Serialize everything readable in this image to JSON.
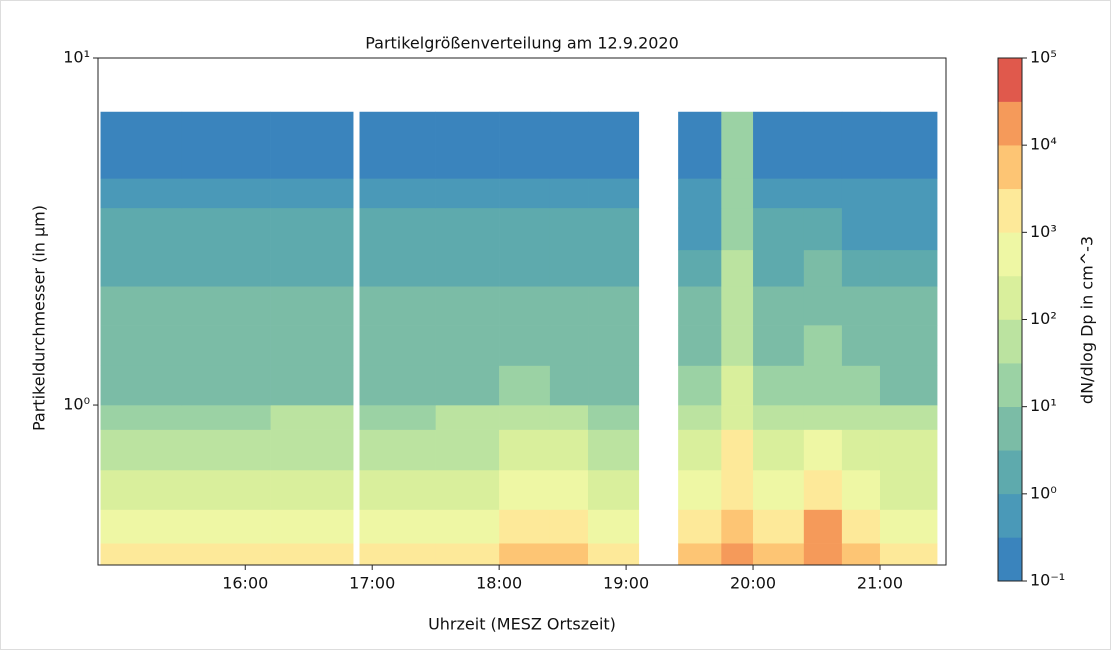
{
  "chart_data": {
    "type": "contour",
    "title": "Partikelgrößenverteilung am 12.9.2020",
    "x_label": "Uhrzeit (MESZ Ortszeit)",
    "y_label": "Partikeldurchmesser (in µm)",
    "colorbar_label": "dN/dlog Dp in cm^-3",
    "x_edges": [
      14.86,
      15.5,
      16.2,
      16.85,
      16.9,
      17.5,
      18.0,
      18.4,
      18.7,
      19.1,
      19.41,
      19.75,
      20.0,
      20.4,
      20.7,
      21.0,
      21.45
    ],
    "y_edges": [
      0.346,
      0.4,
      0.5,
      0.65,
      0.85,
      1.0,
      1.3,
      1.7,
      2.2,
      2.8,
      3.7,
      4.5,
      7.0
    ],
    "z": [
      [
        1500,
        1500,
        1800,
        null,
        1500,
        2000,
        8000,
        6000,
        2500,
        null,
        4000,
        20000,
        6000,
        30000,
        4000,
        2500
      ],
      [
        600,
        600,
        700,
        null,
        600,
        800,
        2000,
        1500,
        900,
        null,
        1500,
        8000,
        2000,
        10000,
        1500,
        900
      ],
      [
        200,
        200,
        250,
        null,
        200,
        250,
        500,
        400,
        250,
        null,
        500,
        3000,
        600,
        2000,
        500,
        300
      ],
      [
        80,
        80,
        90,
        null,
        80,
        90,
        120,
        100,
        90,
        null,
        200,
        1000,
        250,
        400,
        150,
        100
      ],
      [
        30,
        30,
        35,
        null,
        30,
        35,
        40,
        35,
        30,
        null,
        40,
        200,
        50,
        60,
        40,
        35
      ],
      [
        8,
        8,
        9,
        null,
        8,
        8,
        10,
        9,
        8,
        null,
        10,
        100,
        15,
        20,
        10,
        9
      ],
      [
        5,
        5,
        6,
        null,
        5,
        5,
        6,
        6,
        5,
        null,
        6,
        60,
        8,
        10,
        6,
        5
      ],
      [
        6,
        6,
        7,
        null,
        6,
        6,
        7,
        7,
        6,
        null,
        5,
        50,
        6,
        8,
        5,
        5
      ],
      [
        3,
        3,
        3,
        null,
        3,
        3,
        3,
        3,
        3,
        null,
        2,
        40,
        3,
        4,
        2,
        2
      ],
      [
        1,
        1,
        1,
        null,
        1,
        1,
        1,
        1,
        1,
        null,
        0.8,
        30,
        1,
        1.5,
        0.8,
        0.8
      ],
      [
        0.4,
        0.4,
        0.4,
        null,
        0.4,
        0.4,
        0.4,
        0.4,
        0.4,
        null,
        0.4,
        20,
        0.5,
        0.6,
        0.4,
        0.4
      ],
      [
        0.2,
        0.2,
        0.2,
        null,
        0.2,
        0.2,
        0.2,
        0.2,
        0.2,
        null,
        0.2,
        10,
        0.2,
        0.3,
        0.2,
        0.2
      ]
    ],
    "xlim": [
      14.84,
      21.52
    ],
    "xticks": [
      {
        "value": 16,
        "label": "16:00"
      },
      {
        "value": 17,
        "label": "17:00"
      },
      {
        "value": 18,
        "label": "18:00"
      },
      {
        "value": 19,
        "label": "19:00"
      },
      {
        "value": 20,
        "label": "20:00"
      },
      {
        "value": 21,
        "label": "21:00"
      }
    ],
    "ylim": [
      0.346,
      10
    ],
    "yticks": [
      {
        "value": 1,
        "label": "10⁰"
      },
      {
        "value": 10,
        "label": "10¹"
      }
    ],
    "y_log": true,
    "clim": [
      0.1,
      100000
    ],
    "cticks": [
      {
        "value": 0.1,
        "label": "10⁻¹"
      },
      {
        "value": 1,
        "label": "10⁰"
      },
      {
        "value": 10,
        "label": "10¹"
      },
      {
        "value": 100,
        "label": "10²"
      },
      {
        "value": 1000,
        "label": "10³"
      },
      {
        "value": 10000,
        "label": "10⁴"
      },
      {
        "value": 100000,
        "label": "10⁵"
      }
    ],
    "colors": [
      "#3a84bd",
      "#4a99b8",
      "#5eaaad",
      "#7bbca6",
      "#9bd2a4",
      "#bbe3a0",
      "#d9ef9c",
      "#eef7a4",
      "#fde999",
      "#fdc574",
      "#f59a5a",
      "#e0594c"
    ]
  }
}
